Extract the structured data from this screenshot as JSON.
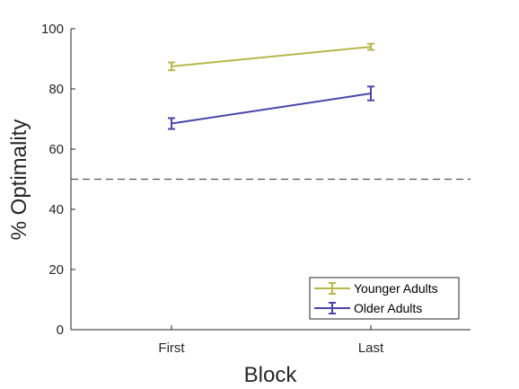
{
  "chart_data": {
    "type": "line",
    "title": "",
    "xlabel": "Block",
    "ylabel": "% Optimality",
    "categories": [
      "First",
      "Last"
    ],
    "ylim": [
      0,
      100
    ],
    "yticks": [
      0,
      20,
      40,
      60,
      80,
      100
    ],
    "grid": false,
    "reference_line": {
      "y": 50,
      "style": "dashed",
      "color": "#555555"
    },
    "legend_position": "bottom-right",
    "series": [
      {
        "name": "Younger Adults",
        "color": "#b5b84a",
        "values": [
          87.5,
          94.0
        ],
        "errors": [
          1.3,
          1.0
        ]
      },
      {
        "name": "Older Adults",
        "color": "#4a46a8",
        "values": [
          68.5,
          78.5
        ],
        "errors": [
          1.8,
          2.3
        ]
      }
    ]
  }
}
